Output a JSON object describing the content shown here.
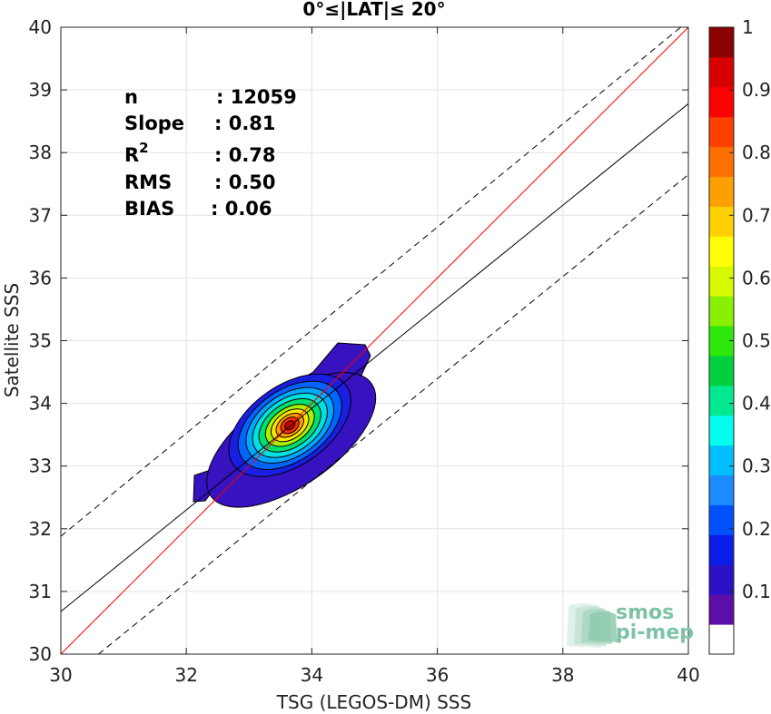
{
  "chart_data": {
    "type": "contour",
    "title": "0°≤|LAT|≤ 20°",
    "xlabel": "TSG (LEGOS-DM) SSS",
    "ylabel": "Satellite SSS",
    "xlim": [
      30,
      40
    ],
    "ylim": [
      30,
      40
    ],
    "xticks": [
      "30",
      "32",
      "34",
      "36",
      "38",
      "40"
    ],
    "yticks": [
      "30",
      "31",
      "32",
      "33",
      "34",
      "35",
      "36",
      "37",
      "38",
      "39",
      "40"
    ],
    "grid": true,
    "stats": [
      {
        "label": "n",
        "value": ": 12059"
      },
      {
        "label": "Slope",
        "value": ": 0.81"
      },
      {
        "label": "R",
        "sup": "2",
        "value": ": 0.78"
      },
      {
        "label": "RMS",
        "value": ": 0.50"
      },
      {
        "label": "BIAS",
        "value": ": 0.06"
      }
    ],
    "lines": {
      "identity": {
        "slope": 1,
        "intercept": 0,
        "color": "#ff0000"
      },
      "fit": {
        "x": [
          30,
          40
        ],
        "y": [
          30.68,
          38.78
        ],
        "color": "#000000"
      },
      "upper_bound": {
        "x": [
          30,
          40
        ],
        "y": [
          31.88,
          40.1
        ],
        "color": "#000000",
        "style": "dashed"
      },
      "lower_bound": {
        "x": [
          30.6,
          40
        ],
        "y": [
          30,
          37.65
        ],
        "color": "#000000",
        "style": "dashed"
      }
    },
    "density_center": {
      "x": 33.65,
      "y": 33.65
    },
    "colorbar": {
      "ticks": [
        "0.1",
        "0.2",
        "0.3",
        "0.4",
        "0.5",
        "0.6",
        "0.7",
        "0.8",
        "0.9",
        "1"
      ],
      "colors": [
        "#ffffff",
        "#5c0fa8",
        "#2b12c8",
        "#0a1ee8",
        "#0050ff",
        "#1a8cff",
        "#00bfff",
        "#00ffee",
        "#00e890",
        "#00d040",
        "#2ee80c",
        "#88f000",
        "#d8f800",
        "#ffff00",
        "#ffd000",
        "#ffa000",
        "#ff7000",
        "#ff4000",
        "#ff0000",
        "#d80000",
        "#8b0000"
      ]
    },
    "logo": [
      "smos",
      "pi-mep"
    ]
  }
}
